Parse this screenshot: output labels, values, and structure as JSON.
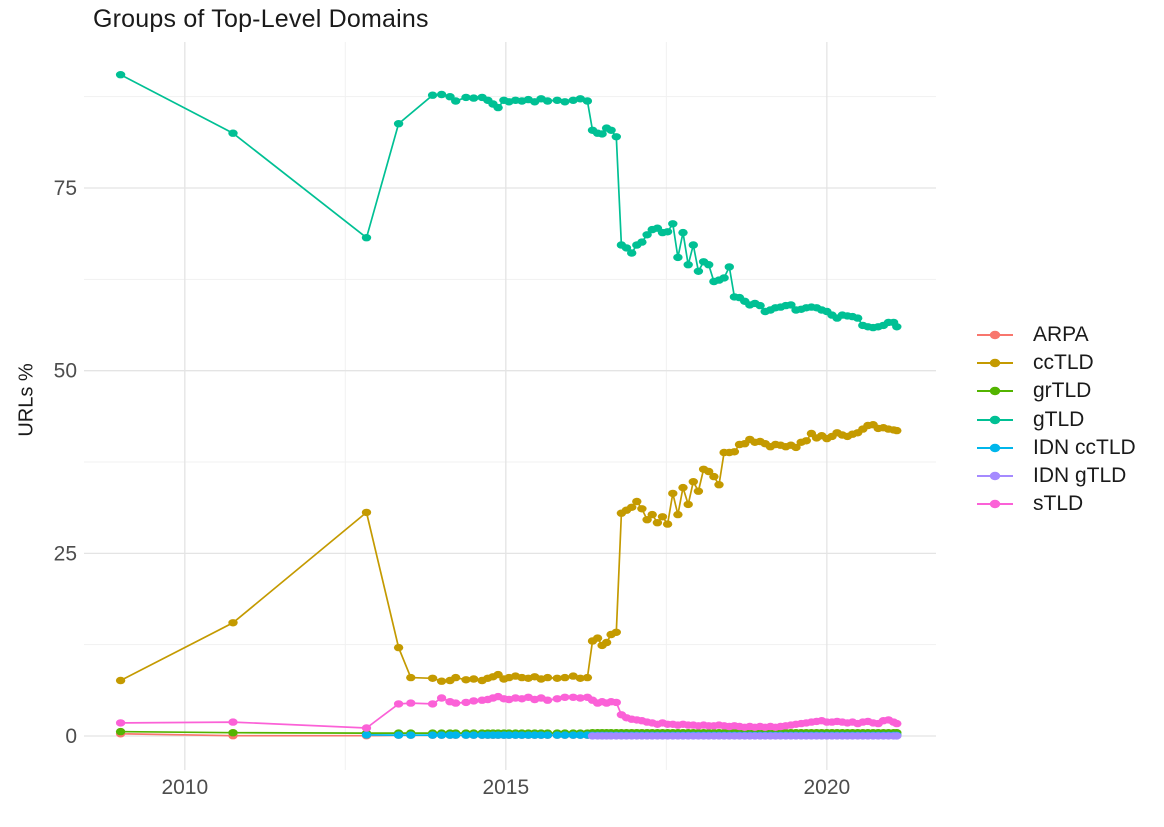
{
  "chart_data": {
    "type": "line",
    "title": "Groups of Top-Level Domains",
    "xlabel": "",
    "ylabel": "URLs %",
    "xlim": [
      2008.43,
      2021.7
    ],
    "ylim": [
      -4.65,
      94.98
    ],
    "x_ticks": [
      2010,
      2015,
      2020
    ],
    "y_ticks": [
      0,
      25,
      50,
      75
    ],
    "x_minor_gridlines": [
      2012.5,
      2017.5
    ],
    "y_minor_gridlines": [
      12.5,
      37.5,
      62.5,
      87.5
    ],
    "grid": true,
    "legend_position": "right",
    "x_dense1": [
      2013.33,
      2013.52,
      2013.86,
      2014.0,
      2014.13,
      2014.22,
      2014.38,
      2014.5,
      2014.63,
      2014.72,
      2014.8,
      2014.88,
      2014.97,
      2015.05,
      2015.15,
      2015.25,
      2015.35,
      2015.45,
      2015.55,
      2015.65,
      2015.8,
      2015.92,
      2016.05,
      2016.16,
      2016.27
    ],
    "x_dense2": [
      2016.35,
      2016.43,
      2016.5,
      2016.57,
      2016.64,
      2016.72,
      2016.8,
      2016.88,
      2016.96,
      2017.04,
      2017.12,
      2017.2,
      2017.28,
      2017.36,
      2017.44,
      2017.52,
      2017.6,
      2017.68,
      2017.76,
      2017.84,
      2017.92,
      2018.0,
      2018.08,
      2018.16,
      2018.24,
      2018.32,
      2018.4,
      2018.48,
      2018.56,
      2018.64,
      2018.72,
      2018.8,
      2018.88,
      2018.96,
      2019.04,
      2019.12,
      2019.2,
      2019.28,
      2019.36,
      2019.44,
      2019.52,
      2019.6,
      2019.68,
      2019.76,
      2019.84,
      2019.92,
      2020.0,
      2020.08,
      2020.16,
      2020.24,
      2020.32,
      2020.4,
      2020.48,
      2020.56,
      2020.64,
      2020.72,
      2020.8,
      2020.88,
      2020.96,
      2021.04,
      2021.09
    ],
    "series": [
      {
        "name": "ARPA",
        "color": "#F8766D",
        "x": [
          2009.0,
          2010.75,
          2012.83
        ],
        "y": [
          0.3,
          0.05,
          0.05
        ],
        "extend": [
          {
            "x_ref": "x_dense1",
            "value": 0.1
          },
          {
            "x_ref": "x_dense2",
            "value": 0.1
          }
        ]
      },
      {
        "name": "ccTLD",
        "color": "#C49A00",
        "x": [
          2009.0,
          2010.75,
          2012.83,
          2013.33,
          2013.52,
          2013.86,
          2014.0,
          2014.13,
          2014.22,
          2014.38,
          2014.5,
          2014.63,
          2014.72,
          2014.8,
          2014.88,
          2014.97,
          2015.05,
          2015.15,
          2015.25,
          2015.35,
          2015.45,
          2015.55,
          2015.65,
          2015.8,
          2015.92,
          2016.05,
          2016.16,
          2016.27,
          2016.35,
          2016.43,
          2016.5,
          2016.57,
          2016.64,
          2016.72,
          2016.8,
          2016.88,
          2016.96,
          2017.04,
          2017.12,
          2017.2,
          2017.28,
          2017.36,
          2017.44,
          2017.52,
          2017.6,
          2017.68,
          2017.76,
          2017.84,
          2017.92,
          2018.0,
          2018.08,
          2018.16,
          2018.24,
          2018.32,
          2018.4,
          2018.48,
          2018.56,
          2018.64,
          2018.72,
          2018.8,
          2018.88,
          2018.96,
          2019.04,
          2019.12,
          2019.2,
          2019.28,
          2019.36,
          2019.44,
          2019.52,
          2019.6,
          2019.68,
          2019.76,
          2019.84,
          2019.92,
          2020.0,
          2020.08,
          2020.16,
          2020.24,
          2020.32,
          2020.4,
          2020.48,
          2020.56,
          2020.64,
          2020.72,
          2020.8,
          2020.88,
          2020.96,
          2021.04,
          2021.09
        ],
        "y": [
          7.6,
          15.5,
          30.6,
          12.1,
          8.0,
          7.9,
          7.5,
          7.6,
          8.0,
          7.7,
          7.8,
          7.6,
          7.9,
          8.1,
          8.4,
          7.8,
          8.0,
          8.2,
          8.0,
          7.9,
          8.1,
          7.8,
          8.0,
          7.9,
          8.0,
          8.2,
          7.9,
          8.0,
          13.0,
          13.4,
          12.4,
          12.8,
          13.9,
          14.2,
          30.5,
          30.9,
          31.3,
          32.1,
          31.1,
          29.6,
          30.3,
          29.2,
          30.0,
          29.0,
          33.2,
          30.3,
          34.0,
          31.7,
          34.8,
          33.5,
          36.5,
          36.2,
          35.5,
          34.4,
          38.8,
          38.8,
          38.9,
          39.9,
          40.0,
          40.6,
          40.2,
          40.3,
          40.0,
          39.6,
          39.9,
          39.8,
          39.6,
          39.8,
          39.5,
          40.2,
          40.4,
          41.4,
          40.8,
          41.1,
          40.7,
          41.0,
          41.5,
          41.2,
          41.0,
          41.3,
          41.5,
          42.0,
          42.5,
          42.6,
          42.1,
          42.2,
          42.0,
          41.9,
          41.8
        ]
      },
      {
        "name": "grTLD",
        "color": "#53B400",
        "x": [
          2009.0,
          2010.75,
          2012.83
        ],
        "y": [
          0.6,
          0.45,
          0.4
        ],
        "extend": [
          {
            "x_ref": "x_dense1",
            "value": 0.4
          },
          {
            "x_ref": "x_dense2",
            "value": 0.45
          }
        ]
      },
      {
        "name": "gTLD",
        "color": "#00C094",
        "x": [
          2009.0,
          2010.75,
          2012.83,
          2013.33,
          2013.86,
          2014.0,
          2014.13,
          2014.22,
          2014.38,
          2014.5,
          2014.63,
          2014.72,
          2014.8,
          2014.88,
          2014.97,
          2015.05,
          2015.15,
          2015.25,
          2015.35,
          2015.45,
          2015.55,
          2015.65,
          2015.8,
          2015.92,
          2016.05,
          2016.16,
          2016.27,
          2016.35,
          2016.43,
          2016.5,
          2016.57,
          2016.64,
          2016.72,
          2016.8,
          2016.88,
          2016.96,
          2017.04,
          2017.12,
          2017.2,
          2017.28,
          2017.36,
          2017.44,
          2017.52,
          2017.6,
          2017.68,
          2017.76,
          2017.84,
          2017.92,
          2018.0,
          2018.08,
          2018.16,
          2018.24,
          2018.32,
          2018.4,
          2018.48,
          2018.56,
          2018.64,
          2018.72,
          2018.8,
          2018.88,
          2018.96,
          2019.04,
          2019.12,
          2019.2,
          2019.28,
          2019.36,
          2019.44,
          2019.52,
          2019.6,
          2019.68,
          2019.76,
          2019.84,
          2019.92,
          2020.0,
          2020.08,
          2020.16,
          2020.24,
          2020.32,
          2020.4,
          2020.48,
          2020.56,
          2020.64,
          2020.72,
          2020.8,
          2020.88,
          2020.96,
          2021.04,
          2021.09
        ],
        "y": [
          90.5,
          82.5,
          68.2,
          83.8,
          87.7,
          87.8,
          87.5,
          86.9,
          87.4,
          87.3,
          87.4,
          87.0,
          86.5,
          86.0,
          87.0,
          86.8,
          87.0,
          86.9,
          87.1,
          86.8,
          87.2,
          86.9,
          87.0,
          86.8,
          87.0,
          87.2,
          86.9,
          82.9,
          82.5,
          82.4,
          83.2,
          82.9,
          82.0,
          67.2,
          66.8,
          66.1,
          67.2,
          67.6,
          68.6,
          69.3,
          69.5,
          68.9,
          69.0,
          70.1,
          65.5,
          68.9,
          64.5,
          67.2,
          63.6,
          64.9,
          64.5,
          62.2,
          62.4,
          62.7,
          64.2,
          60.1,
          60.0,
          59.5,
          59.0,
          59.2,
          58.9,
          58.1,
          58.3,
          58.6,
          58.7,
          58.9,
          59.0,
          58.3,
          58.4,
          58.6,
          58.7,
          58.6,
          58.3,
          58.1,
          57.6,
          57.2,
          57.6,
          57.5,
          57.4,
          57.2,
          56.2,
          56.0,
          55.9,
          56.0,
          56.2,
          56.6,
          56.6,
          56.0
        ]
      },
      {
        "name": "IDN ccTLD",
        "color": "#00B6EB",
        "x": [
          2012.83
        ],
        "y": [
          0.15
        ],
        "extend": [
          {
            "x_ref": "x_dense1",
            "value": 0.12
          },
          {
            "x_ref": "x_dense2",
            "value": 0.1
          }
        ]
      },
      {
        "name": "IDN gTLD",
        "color": "#A58AFF",
        "x": [],
        "y": [],
        "extend": [
          {
            "x_ref": "x_dense2",
            "value": 0.02
          }
        ]
      },
      {
        "name": "sTLD",
        "color": "#FB61D7",
        "x": [
          2009.0,
          2010.75,
          2012.83,
          2013.33,
          2013.52,
          2013.86,
          2014.0,
          2014.13,
          2014.22,
          2014.38,
          2014.5,
          2014.63,
          2014.72,
          2014.8,
          2014.88,
          2014.97,
          2015.05,
          2015.15,
          2015.25,
          2015.35,
          2015.45,
          2015.55,
          2015.65,
          2015.8,
          2015.92,
          2016.05,
          2016.16,
          2016.27,
          2016.35,
          2016.43,
          2016.5,
          2016.57,
          2016.64,
          2016.72,
          2016.8,
          2016.88,
          2016.96,
          2017.04,
          2017.12,
          2017.2,
          2017.28,
          2017.36,
          2017.44,
          2017.52,
          2017.6,
          2017.68,
          2017.76,
          2017.84,
          2017.92,
          2018.0,
          2018.08,
          2018.16,
          2018.24,
          2018.32,
          2018.4,
          2018.48,
          2018.56,
          2018.64,
          2018.72,
          2018.8,
          2018.88,
          2018.96,
          2019.04,
          2019.12,
          2019.2,
          2019.28,
          2019.36,
          2019.44,
          2019.52,
          2019.6,
          2019.68,
          2019.76,
          2019.84,
          2019.92,
          2020.0,
          2020.08,
          2020.16,
          2020.24,
          2020.32,
          2020.4,
          2020.48,
          2020.56,
          2020.64,
          2020.72,
          2020.8,
          2020.88,
          2020.96,
          2021.04,
          2021.09
        ],
        "y": [
          1.8,
          1.9,
          1.1,
          4.4,
          4.5,
          4.4,
          5.2,
          4.7,
          4.5,
          4.6,
          4.8,
          4.9,
          5.0,
          5.2,
          5.4,
          5.1,
          5.0,
          5.2,
          5.1,
          5.3,
          5.0,
          5.2,
          4.9,
          5.1,
          5.3,
          5.3,
          5.2,
          5.3,
          4.9,
          4.5,
          4.7,
          4.5,
          4.7,
          4.6,
          2.9,
          2.5,
          2.3,
          2.2,
          2.1,
          1.9,
          1.8,
          1.6,
          1.8,
          1.6,
          1.6,
          1.5,
          1.6,
          1.5,
          1.5,
          1.4,
          1.5,
          1.4,
          1.4,
          1.5,
          1.4,
          1.3,
          1.4,
          1.3,
          1.2,
          1.3,
          1.2,
          1.3,
          1.2,
          1.3,
          1.2,
          1.3,
          1.4,
          1.5,
          1.6,
          1.7,
          1.8,
          1.9,
          2.0,
          2.1,
          1.9,
          1.9,
          2.0,
          1.9,
          1.8,
          1.9,
          1.7,
          1.9,
          2.0,
          1.8,
          1.7,
          2.1,
          2.2,
          1.9,
          1.7
        ]
      }
    ],
    "legend": {
      "items": [
        {
          "label": "ARPA",
          "color": "#F8766D"
        },
        {
          "label": "ccTLD",
          "color": "#C49A00"
        },
        {
          "label": "grTLD",
          "color": "#53B400"
        },
        {
          "label": "gTLD",
          "color": "#00C094"
        },
        {
          "label": "IDN ccTLD",
          "color": "#00B6EB"
        },
        {
          "label": "IDN gTLD",
          "color": "#A58AFF"
        },
        {
          "label": "sTLD",
          "color": "#FB61D7"
        }
      ]
    },
    "colors": {
      "major_grid": "#e4e4e4",
      "minor_grid": "#f1f1f1",
      "tick_text": "#4d4d4d",
      "title_text": "#1a1a1a",
      "background": "#ffffff"
    }
  }
}
